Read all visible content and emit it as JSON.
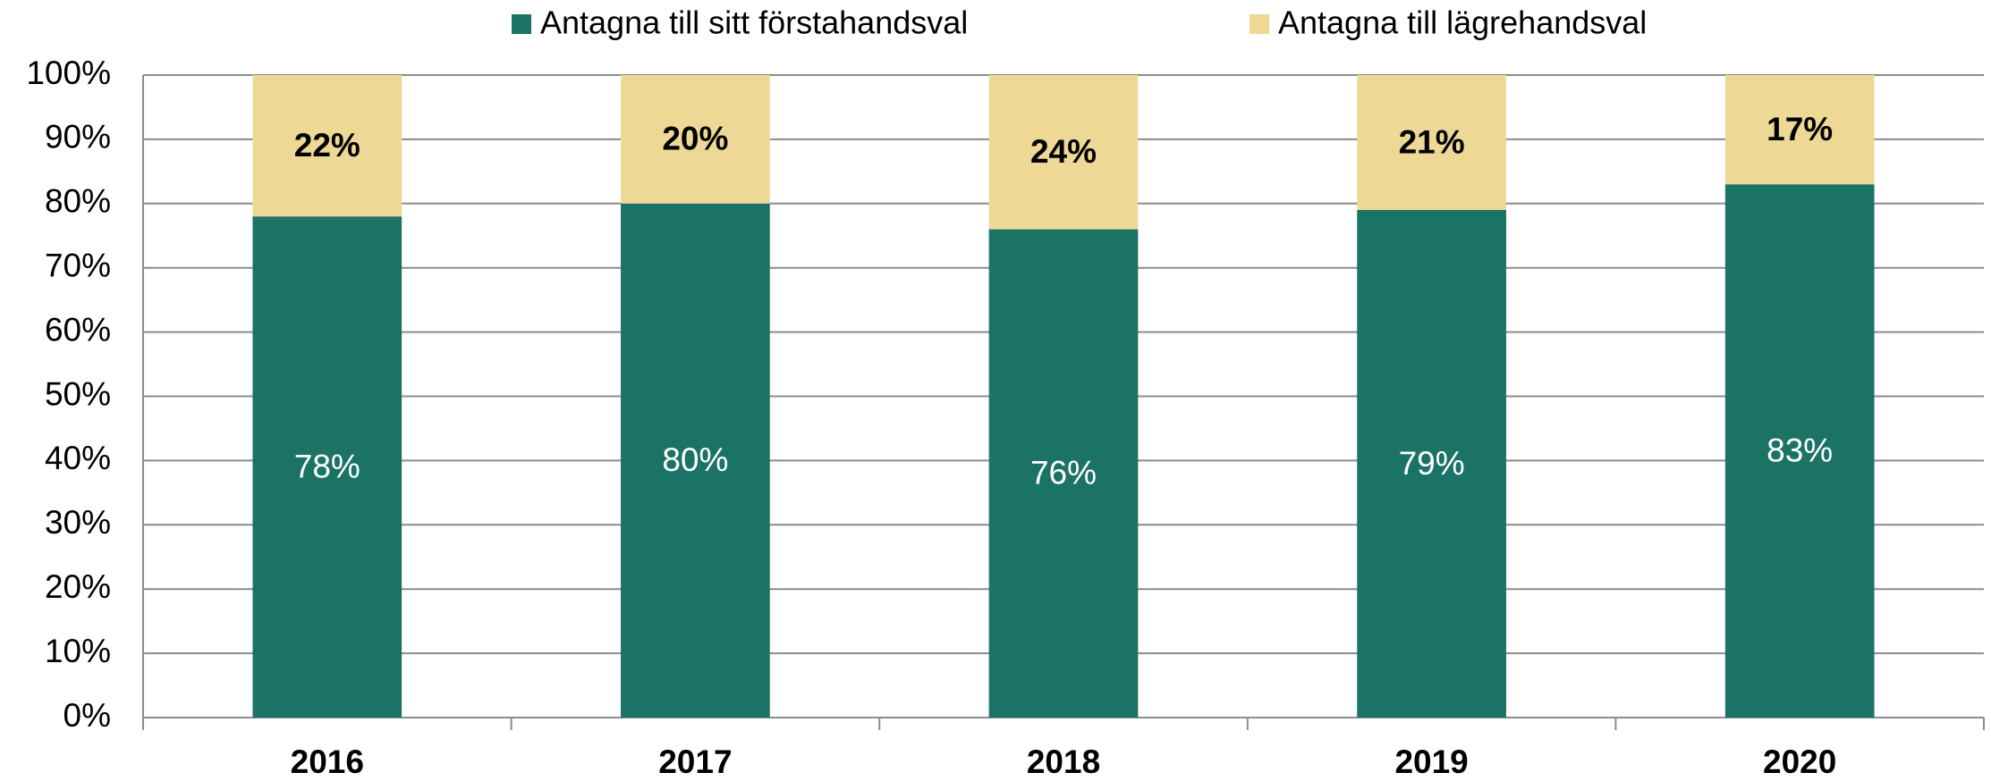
{
  "chart_data": {
    "type": "stacked_bar",
    "categories": [
      "2016",
      "2017",
      "2018",
      "2019",
      "2020"
    ],
    "series": [
      {
        "name": "Antagna till sitt förstahandsval",
        "color": "#1b7366",
        "values": [
          78,
          80,
          76,
          79,
          83
        ],
        "value_labels": [
          "78%",
          "80%",
          "76%",
          "79%",
          "83%"
        ]
      },
      {
        "name": "Antagna till lägrehandsval",
        "color": "#eed896",
        "values": [
          22,
          20,
          24,
          21,
          17
        ],
        "value_labels": [
          "22%",
          "20%",
          "24%",
          "21%",
          "17%"
        ]
      }
    ],
    "ylim": [
      0,
      100
    ],
    "yticks": [
      {
        "value": 0,
        "label": "0%"
      },
      {
        "value": 10,
        "label": "10%"
      },
      {
        "value": 20,
        "label": "20%"
      },
      {
        "value": 30,
        "label": "30%"
      },
      {
        "value": 40,
        "label": "40%"
      },
      {
        "value": 50,
        "label": "50%"
      },
      {
        "value": 60,
        "label": "60%"
      },
      {
        "value": 70,
        "label": "70%"
      },
      {
        "value": 80,
        "label": "80%"
      },
      {
        "value": 90,
        "label": "90%"
      },
      {
        "value": 100,
        "label": "100%"
      }
    ],
    "grid": true,
    "legend": "top"
  }
}
